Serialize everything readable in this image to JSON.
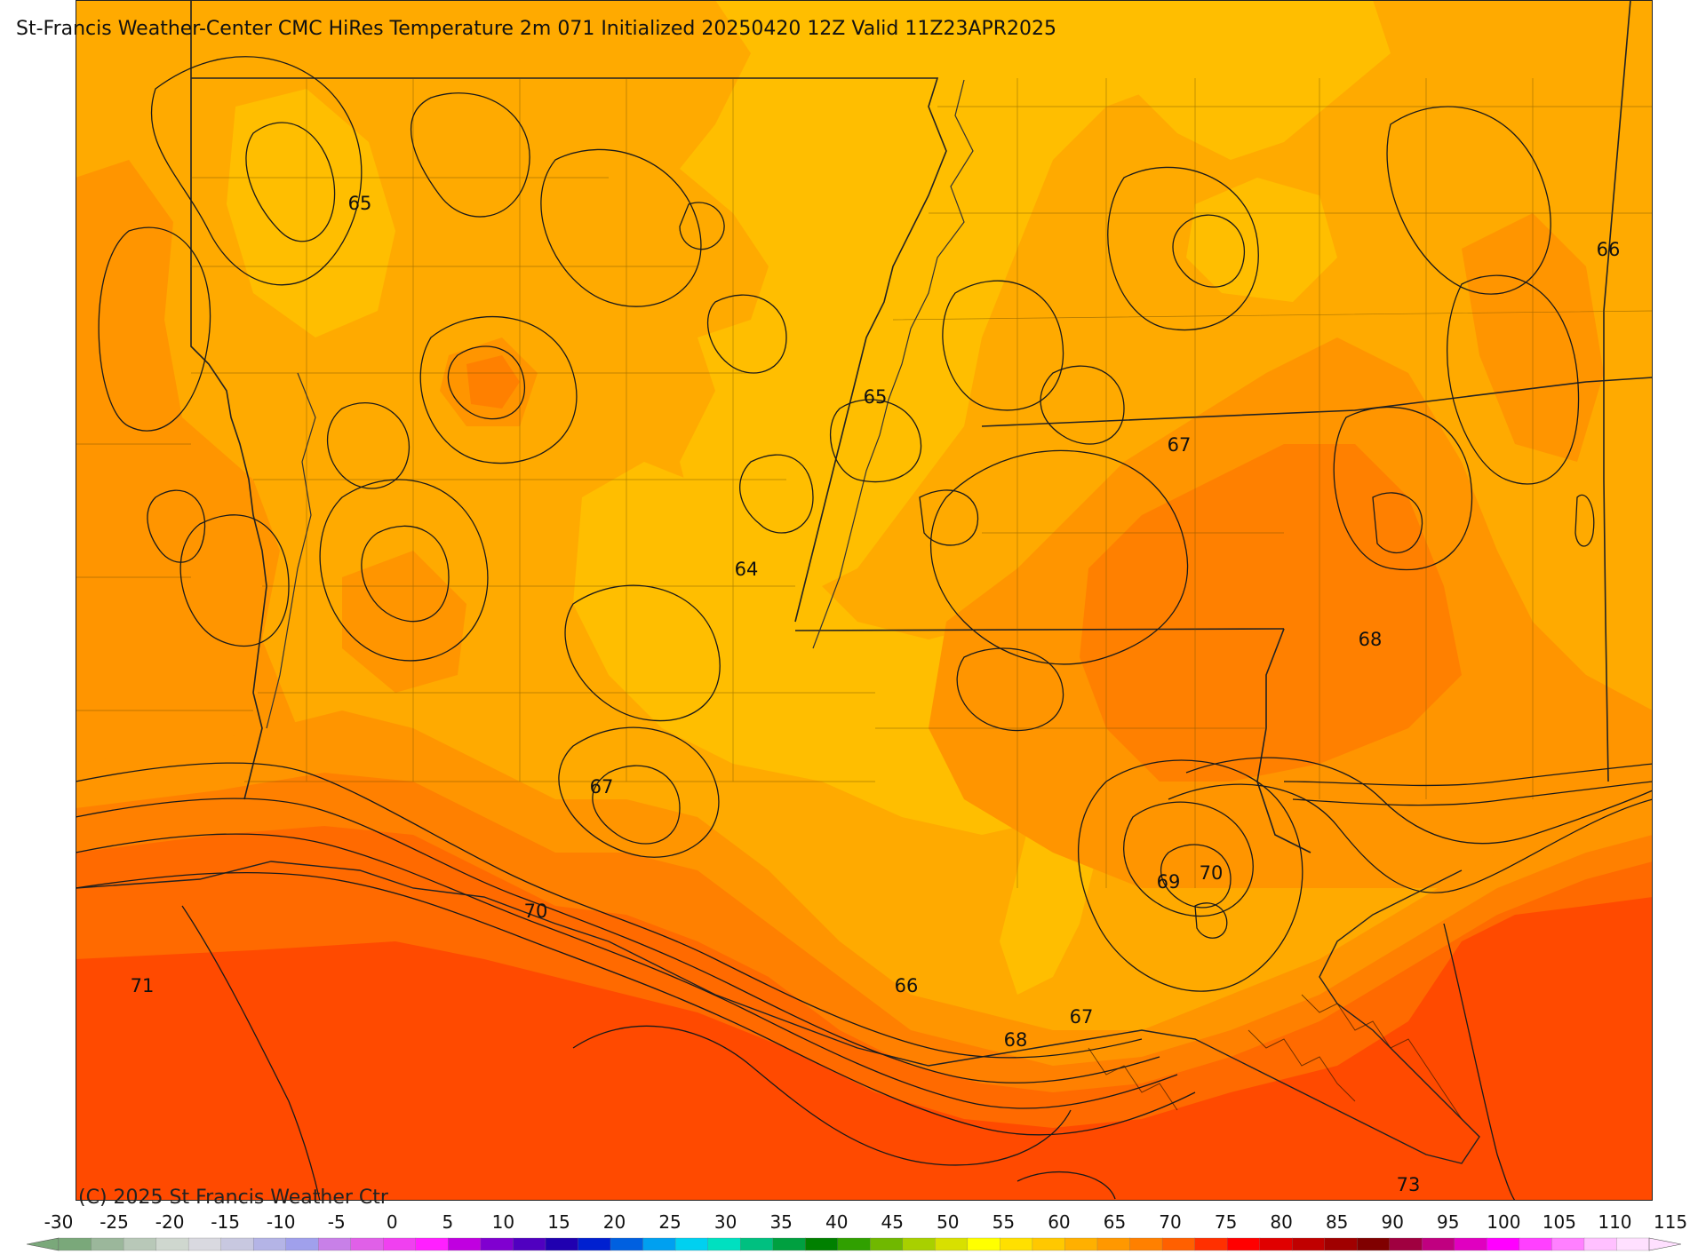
{
  "title": "St-Francis Weather-Center CMC HiRes Temperature 2m  071 Initialized 20250420 12Z Valid 11Z23APR2025",
  "copyright": "(C) 2025 St Francis Weather Ctr",
  "map": {
    "fill_colors": {
      "t64_65": "#ffbe00",
      "t65_66": "#ffaa00",
      "t66_67": "#ff9500",
      "t67_68": "#ff8000",
      "t68_70": "#ff6a00",
      "t70_plus": "#ff4a00"
    },
    "contour_labels": [
      {
        "text": "65"
      },
      {
        "text": "66"
      },
      {
        "text": "65"
      },
      {
        "text": "67"
      },
      {
        "text": "64"
      },
      {
        "text": "68"
      },
      {
        "text": "67"
      },
      {
        "text": "70"
      },
      {
        "text": "69"
      },
      {
        "text": "70"
      },
      {
        "text": "71"
      },
      {
        "text": "66"
      },
      {
        "text": "67"
      },
      {
        "text": "68"
      },
      {
        "text": "73"
      }
    ]
  },
  "colorbar": {
    "ticks": [
      "-30",
      "-25",
      "-20",
      "-15",
      "-10",
      "-5",
      "0",
      "5",
      "10",
      "15",
      "20",
      "25",
      "30",
      "35",
      "40",
      "45",
      "50",
      "55",
      "60",
      "65",
      "70",
      "75",
      "80",
      "85",
      "90",
      "95",
      "100",
      "105",
      "110",
      "115"
    ],
    "colors": [
      "#7aa87a",
      "#9bb79b",
      "#b8c8b8",
      "#cfd7cf",
      "#d9d9e0",
      "#c8c8e0",
      "#b4b4e6",
      "#a0a0ec",
      "#c880e8",
      "#e060e8",
      "#f040f0",
      "#ff20ff",
      "#c000e0",
      "#8000d0",
      "#5000c0",
      "#2000b0",
      "#0020d0",
      "#0060e0",
      "#00a0f0",
      "#00d0f0",
      "#00e0c0",
      "#00c080",
      "#00a040",
      "#008000",
      "#30a000",
      "#70b800",
      "#a8d000",
      "#d8e000",
      "#ffff00",
      "#ffe000",
      "#ffc800",
      "#ffb000",
      "#ff9800",
      "#ff8000",
      "#ff6000",
      "#ff3000",
      "#ff0000",
      "#e00000",
      "#c00000",
      "#a00000",
      "#800000",
      "#a00040",
      "#c00080",
      "#e000c0",
      "#ff00ff",
      "#ff40ff",
      "#ff80ff",
      "#ffc0ff",
      "#ffe0ff"
    ]
  }
}
